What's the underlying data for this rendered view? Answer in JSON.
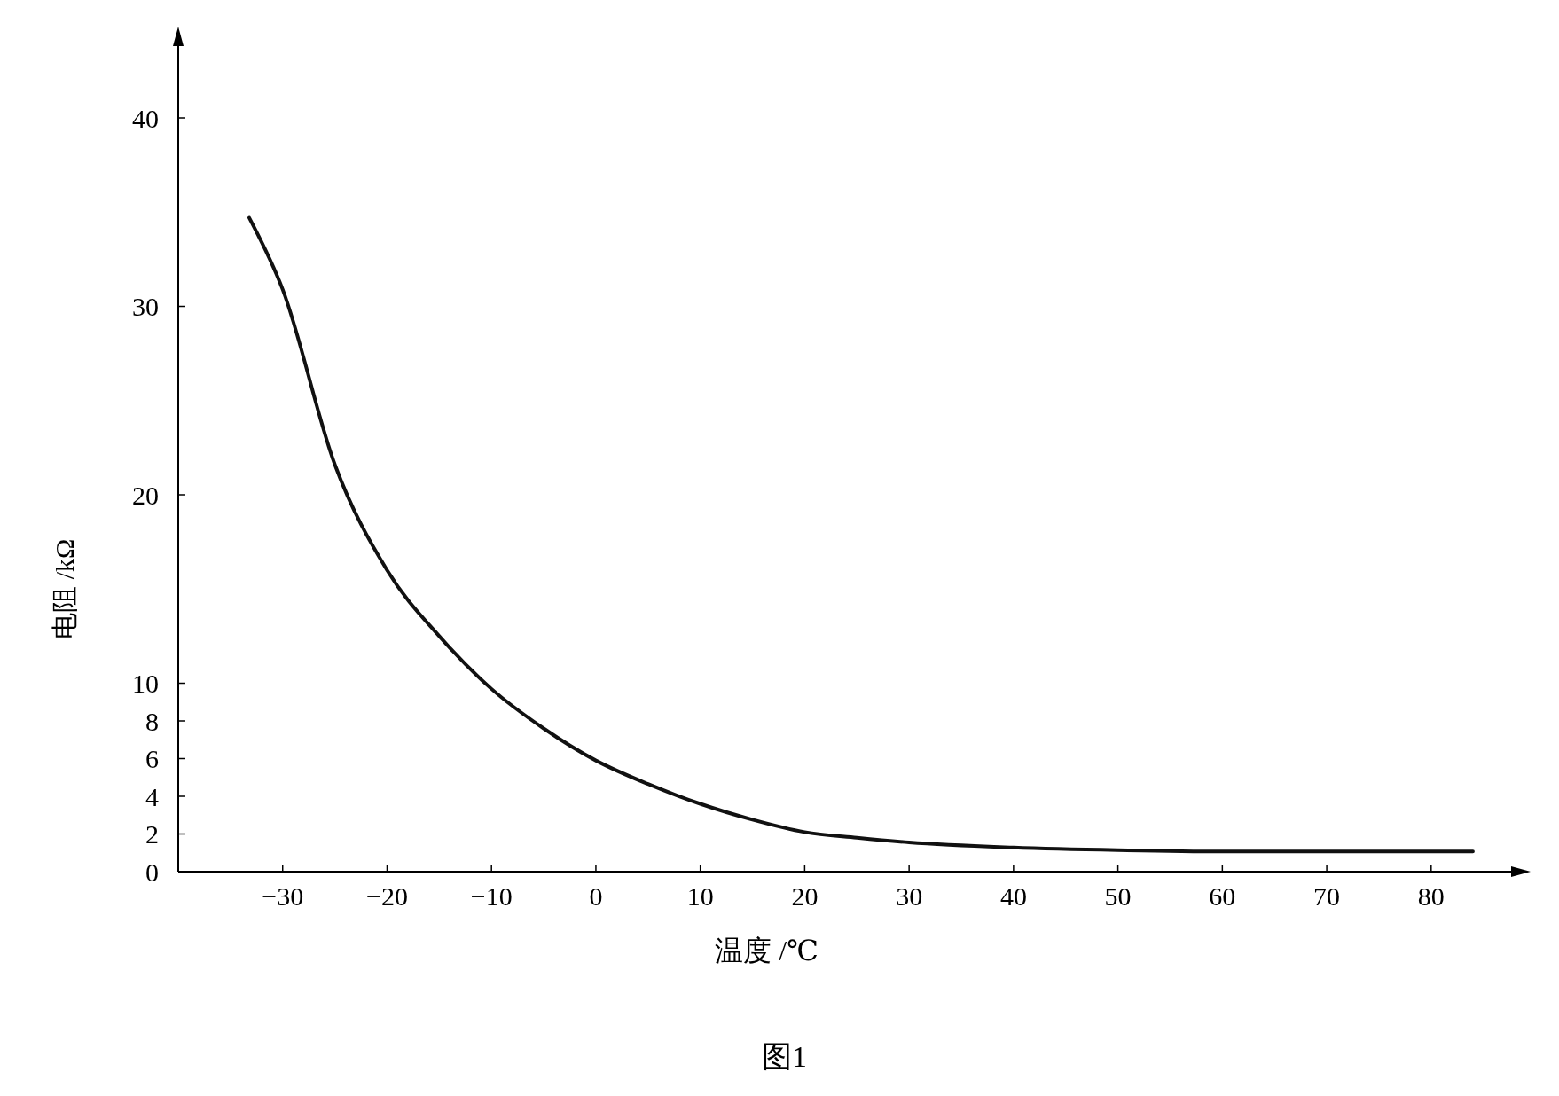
{
  "chart_data": {
    "type": "line",
    "xlabel": "温度 /℃",
    "ylabel": "电阻 /kΩ",
    "annotations": [
      "图1"
    ],
    "xlim": [
      -40,
      88
    ],
    "xticks": [
      -30,
      -20,
      -10,
      0,
      10,
      20,
      30,
      40,
      50,
      60,
      70,
      80
    ],
    "ylim": [
      0,
      44
    ],
    "yticks": [
      0,
      2,
      4,
      6,
      8,
      10,
      20,
      30,
      40
    ],
    "grid": false,
    "marker": "none",
    "line_style": "solid",
    "series": [
      {
        "color": "#111111",
        "x": [
          -33.2,
          -30,
          -25,
          -20,
          -15,
          -10,
          -5,
          0,
          5,
          10,
          15,
          20,
          25,
          30,
          40,
          50,
          60,
          70,
          84
        ],
        "values": [
          34.7,
          30.9,
          21.6,
          16,
          12.5,
          9.7,
          7.6,
          5.9,
          4.65,
          3.6,
          2.76,
          2.1,
          1.8,
          1.55,
          1.28,
          1.14,
          1.07,
          1.07,
          1.07
        ]
      }
    ]
  }
}
